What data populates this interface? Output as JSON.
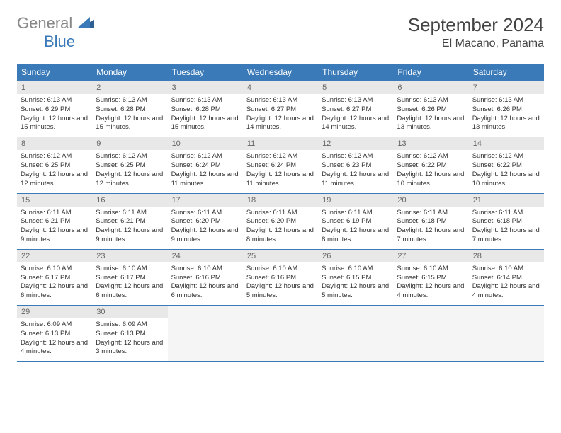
{
  "logo": {
    "line1": "General",
    "line2": "Blue"
  },
  "title": "September 2024",
  "subtitle": "El Macano, Panama",
  "colors": {
    "header_bg": "#3a7ab8",
    "header_text": "#ffffff",
    "daynum_bg": "#e8e8e8",
    "border": "#3a7ab8",
    "logo_gray": "#888888",
    "logo_blue": "#3a7ab8"
  },
  "weekdays": [
    "Sunday",
    "Monday",
    "Tuesday",
    "Wednesday",
    "Thursday",
    "Friday",
    "Saturday"
  ],
  "days": [
    {
      "n": 1,
      "sr": "6:13 AM",
      "ss": "6:29 PM",
      "dl": "12 hours and 15 minutes."
    },
    {
      "n": 2,
      "sr": "6:13 AM",
      "ss": "6:28 PM",
      "dl": "12 hours and 15 minutes."
    },
    {
      "n": 3,
      "sr": "6:13 AM",
      "ss": "6:28 PM",
      "dl": "12 hours and 15 minutes."
    },
    {
      "n": 4,
      "sr": "6:13 AM",
      "ss": "6:27 PM",
      "dl": "12 hours and 14 minutes."
    },
    {
      "n": 5,
      "sr": "6:13 AM",
      "ss": "6:27 PM",
      "dl": "12 hours and 14 minutes."
    },
    {
      "n": 6,
      "sr": "6:13 AM",
      "ss": "6:26 PM",
      "dl": "12 hours and 13 minutes."
    },
    {
      "n": 7,
      "sr": "6:13 AM",
      "ss": "6:26 PM",
      "dl": "12 hours and 13 minutes."
    },
    {
      "n": 8,
      "sr": "6:12 AM",
      "ss": "6:25 PM",
      "dl": "12 hours and 12 minutes."
    },
    {
      "n": 9,
      "sr": "6:12 AM",
      "ss": "6:25 PM",
      "dl": "12 hours and 12 minutes."
    },
    {
      "n": 10,
      "sr": "6:12 AM",
      "ss": "6:24 PM",
      "dl": "12 hours and 11 minutes."
    },
    {
      "n": 11,
      "sr": "6:12 AM",
      "ss": "6:24 PM",
      "dl": "12 hours and 11 minutes."
    },
    {
      "n": 12,
      "sr": "6:12 AM",
      "ss": "6:23 PM",
      "dl": "12 hours and 11 minutes."
    },
    {
      "n": 13,
      "sr": "6:12 AM",
      "ss": "6:22 PM",
      "dl": "12 hours and 10 minutes."
    },
    {
      "n": 14,
      "sr": "6:12 AM",
      "ss": "6:22 PM",
      "dl": "12 hours and 10 minutes."
    },
    {
      "n": 15,
      "sr": "6:11 AM",
      "ss": "6:21 PM",
      "dl": "12 hours and 9 minutes."
    },
    {
      "n": 16,
      "sr": "6:11 AM",
      "ss": "6:21 PM",
      "dl": "12 hours and 9 minutes."
    },
    {
      "n": 17,
      "sr": "6:11 AM",
      "ss": "6:20 PM",
      "dl": "12 hours and 9 minutes."
    },
    {
      "n": 18,
      "sr": "6:11 AM",
      "ss": "6:20 PM",
      "dl": "12 hours and 8 minutes."
    },
    {
      "n": 19,
      "sr": "6:11 AM",
      "ss": "6:19 PM",
      "dl": "12 hours and 8 minutes."
    },
    {
      "n": 20,
      "sr": "6:11 AM",
      "ss": "6:18 PM",
      "dl": "12 hours and 7 minutes."
    },
    {
      "n": 21,
      "sr": "6:11 AM",
      "ss": "6:18 PM",
      "dl": "12 hours and 7 minutes."
    },
    {
      "n": 22,
      "sr": "6:10 AM",
      "ss": "6:17 PM",
      "dl": "12 hours and 6 minutes."
    },
    {
      "n": 23,
      "sr": "6:10 AM",
      "ss": "6:17 PM",
      "dl": "12 hours and 6 minutes."
    },
    {
      "n": 24,
      "sr": "6:10 AM",
      "ss": "6:16 PM",
      "dl": "12 hours and 6 minutes."
    },
    {
      "n": 25,
      "sr": "6:10 AM",
      "ss": "6:16 PM",
      "dl": "12 hours and 5 minutes."
    },
    {
      "n": 26,
      "sr": "6:10 AM",
      "ss": "6:15 PM",
      "dl": "12 hours and 5 minutes."
    },
    {
      "n": 27,
      "sr": "6:10 AM",
      "ss": "6:15 PM",
      "dl": "12 hours and 4 minutes."
    },
    {
      "n": 28,
      "sr": "6:10 AM",
      "ss": "6:14 PM",
      "dl": "12 hours and 4 minutes."
    },
    {
      "n": 29,
      "sr": "6:09 AM",
      "ss": "6:13 PM",
      "dl": "12 hours and 4 minutes."
    },
    {
      "n": 30,
      "sr": "6:09 AM",
      "ss": "6:13 PM",
      "dl": "12 hours and 3 minutes."
    }
  ],
  "labels": {
    "sunrise": "Sunrise:",
    "sunset": "Sunset:",
    "daylight": "Daylight:"
  }
}
